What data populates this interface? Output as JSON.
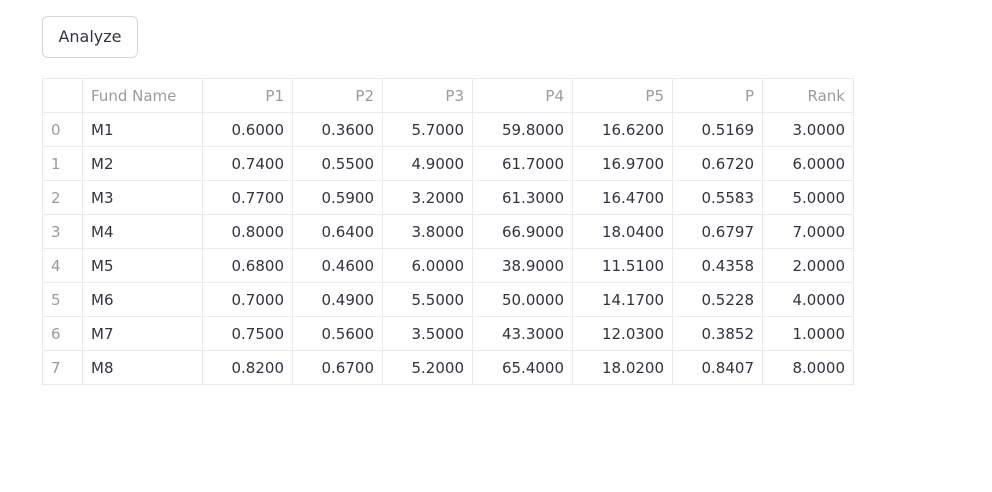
{
  "toolbar": {
    "analyze_label": "Analyze"
  },
  "table": {
    "columns": [
      "",
      "Fund Name",
      "P1",
      "P2",
      "P3",
      "P4",
      "P5",
      "P",
      "Rank"
    ],
    "rows": [
      [
        "0",
        "M1",
        "0.6000",
        "0.3600",
        "5.7000",
        "59.8000",
        "16.6200",
        "0.5169",
        "3.0000"
      ],
      [
        "1",
        "M2",
        "0.7400",
        "0.5500",
        "4.9000",
        "61.7000",
        "16.9700",
        "0.6720",
        "6.0000"
      ],
      [
        "2",
        "M3",
        "0.7700",
        "0.5900",
        "3.2000",
        "61.3000",
        "16.4700",
        "0.5583",
        "5.0000"
      ],
      [
        "3",
        "M4",
        "0.8000",
        "0.6400",
        "3.8000",
        "66.9000",
        "18.0400",
        "0.6797",
        "7.0000"
      ],
      [
        "4",
        "M5",
        "0.6800",
        "0.4600",
        "6.0000",
        "38.9000",
        "11.5100",
        "0.4358",
        "2.0000"
      ],
      [
        "5",
        "M6",
        "0.7000",
        "0.4900",
        "5.5000",
        "50.0000",
        "14.1700",
        "0.5228",
        "4.0000"
      ],
      [
        "6",
        "M7",
        "0.7500",
        "0.5600",
        "3.5000",
        "43.3000",
        "12.0300",
        "0.3852",
        "1.0000"
      ],
      [
        "7",
        "M8",
        "0.8200",
        "0.6700",
        "5.2000",
        "65.4000",
        "18.0200",
        "0.8407",
        "8.0000"
      ]
    ]
  }
}
